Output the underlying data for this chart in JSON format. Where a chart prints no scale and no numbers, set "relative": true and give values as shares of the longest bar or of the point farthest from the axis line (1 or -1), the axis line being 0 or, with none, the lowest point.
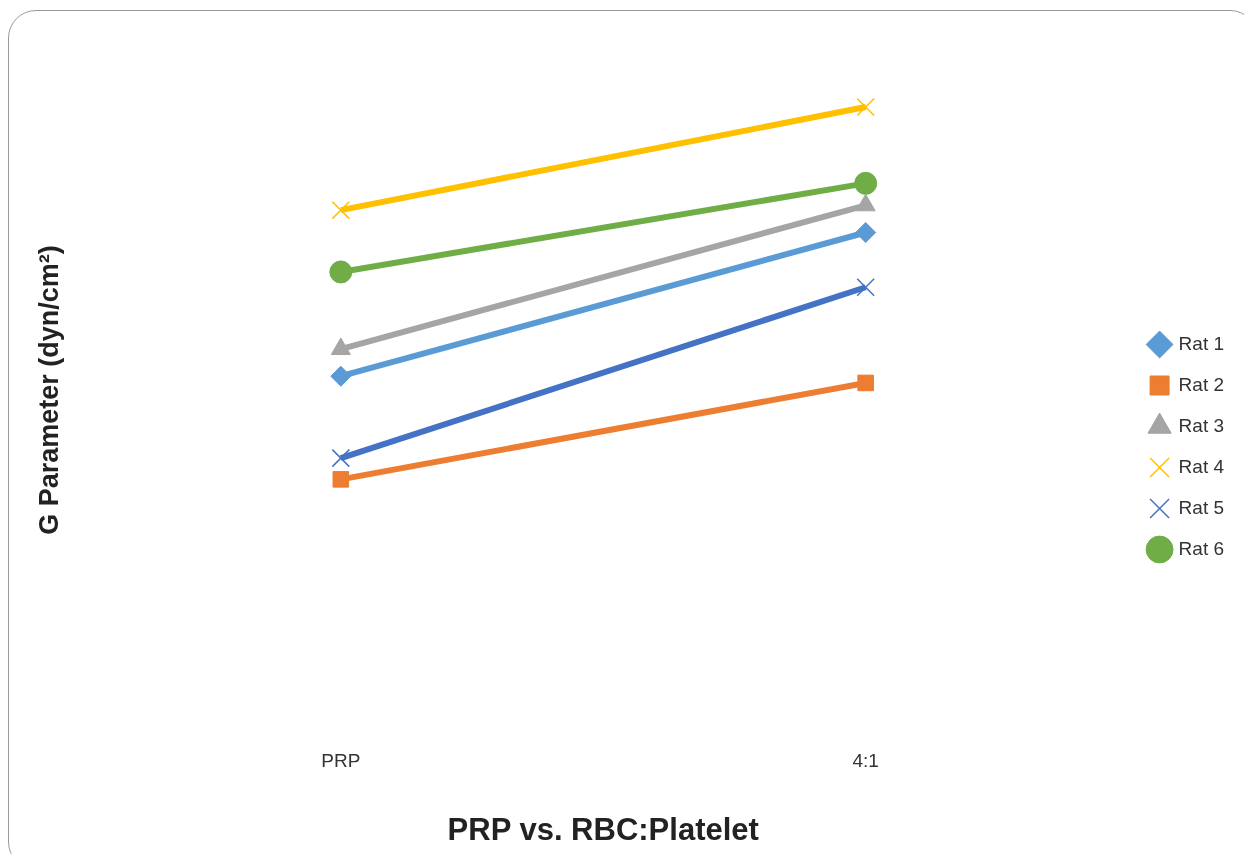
{
  "chart_data": {
    "type": "line",
    "relative": true,
    "xlabel": "PRP vs. RBC:Platelet",
    "ylabel": "G Parameter (dyn/cm²)",
    "categories": [
      "PRP",
      "4:1"
    ],
    "legend": "right",
    "grid": false,
    "series": [
      {
        "name": "Rat 1",
        "color": "#5b9bd5",
        "marker": "diamond",
        "values": [
          0.277,
          0.663
        ]
      },
      {
        "name": "Rat 2",
        "color": "#ed7d31",
        "marker": "square",
        "values": [
          0,
          0.259
        ]
      },
      {
        "name": "Rat 3",
        "color": "#a5a5a5",
        "marker": "triangle",
        "values": [
          0.35,
          0.736
        ]
      },
      {
        "name": "Rat 4",
        "color": "#ffc000",
        "marker": "cross",
        "values": [
          0.723,
          1
        ]
      },
      {
        "name": "Rat 5",
        "color": "#4472c4",
        "marker": "cross",
        "values": [
          0.057,
          0.516
        ]
      },
      {
        "name": "Rat 6",
        "color": "#70ad47",
        "marker": "circle",
        "values": [
          0.557,
          0.795
        ]
      }
    ]
  }
}
